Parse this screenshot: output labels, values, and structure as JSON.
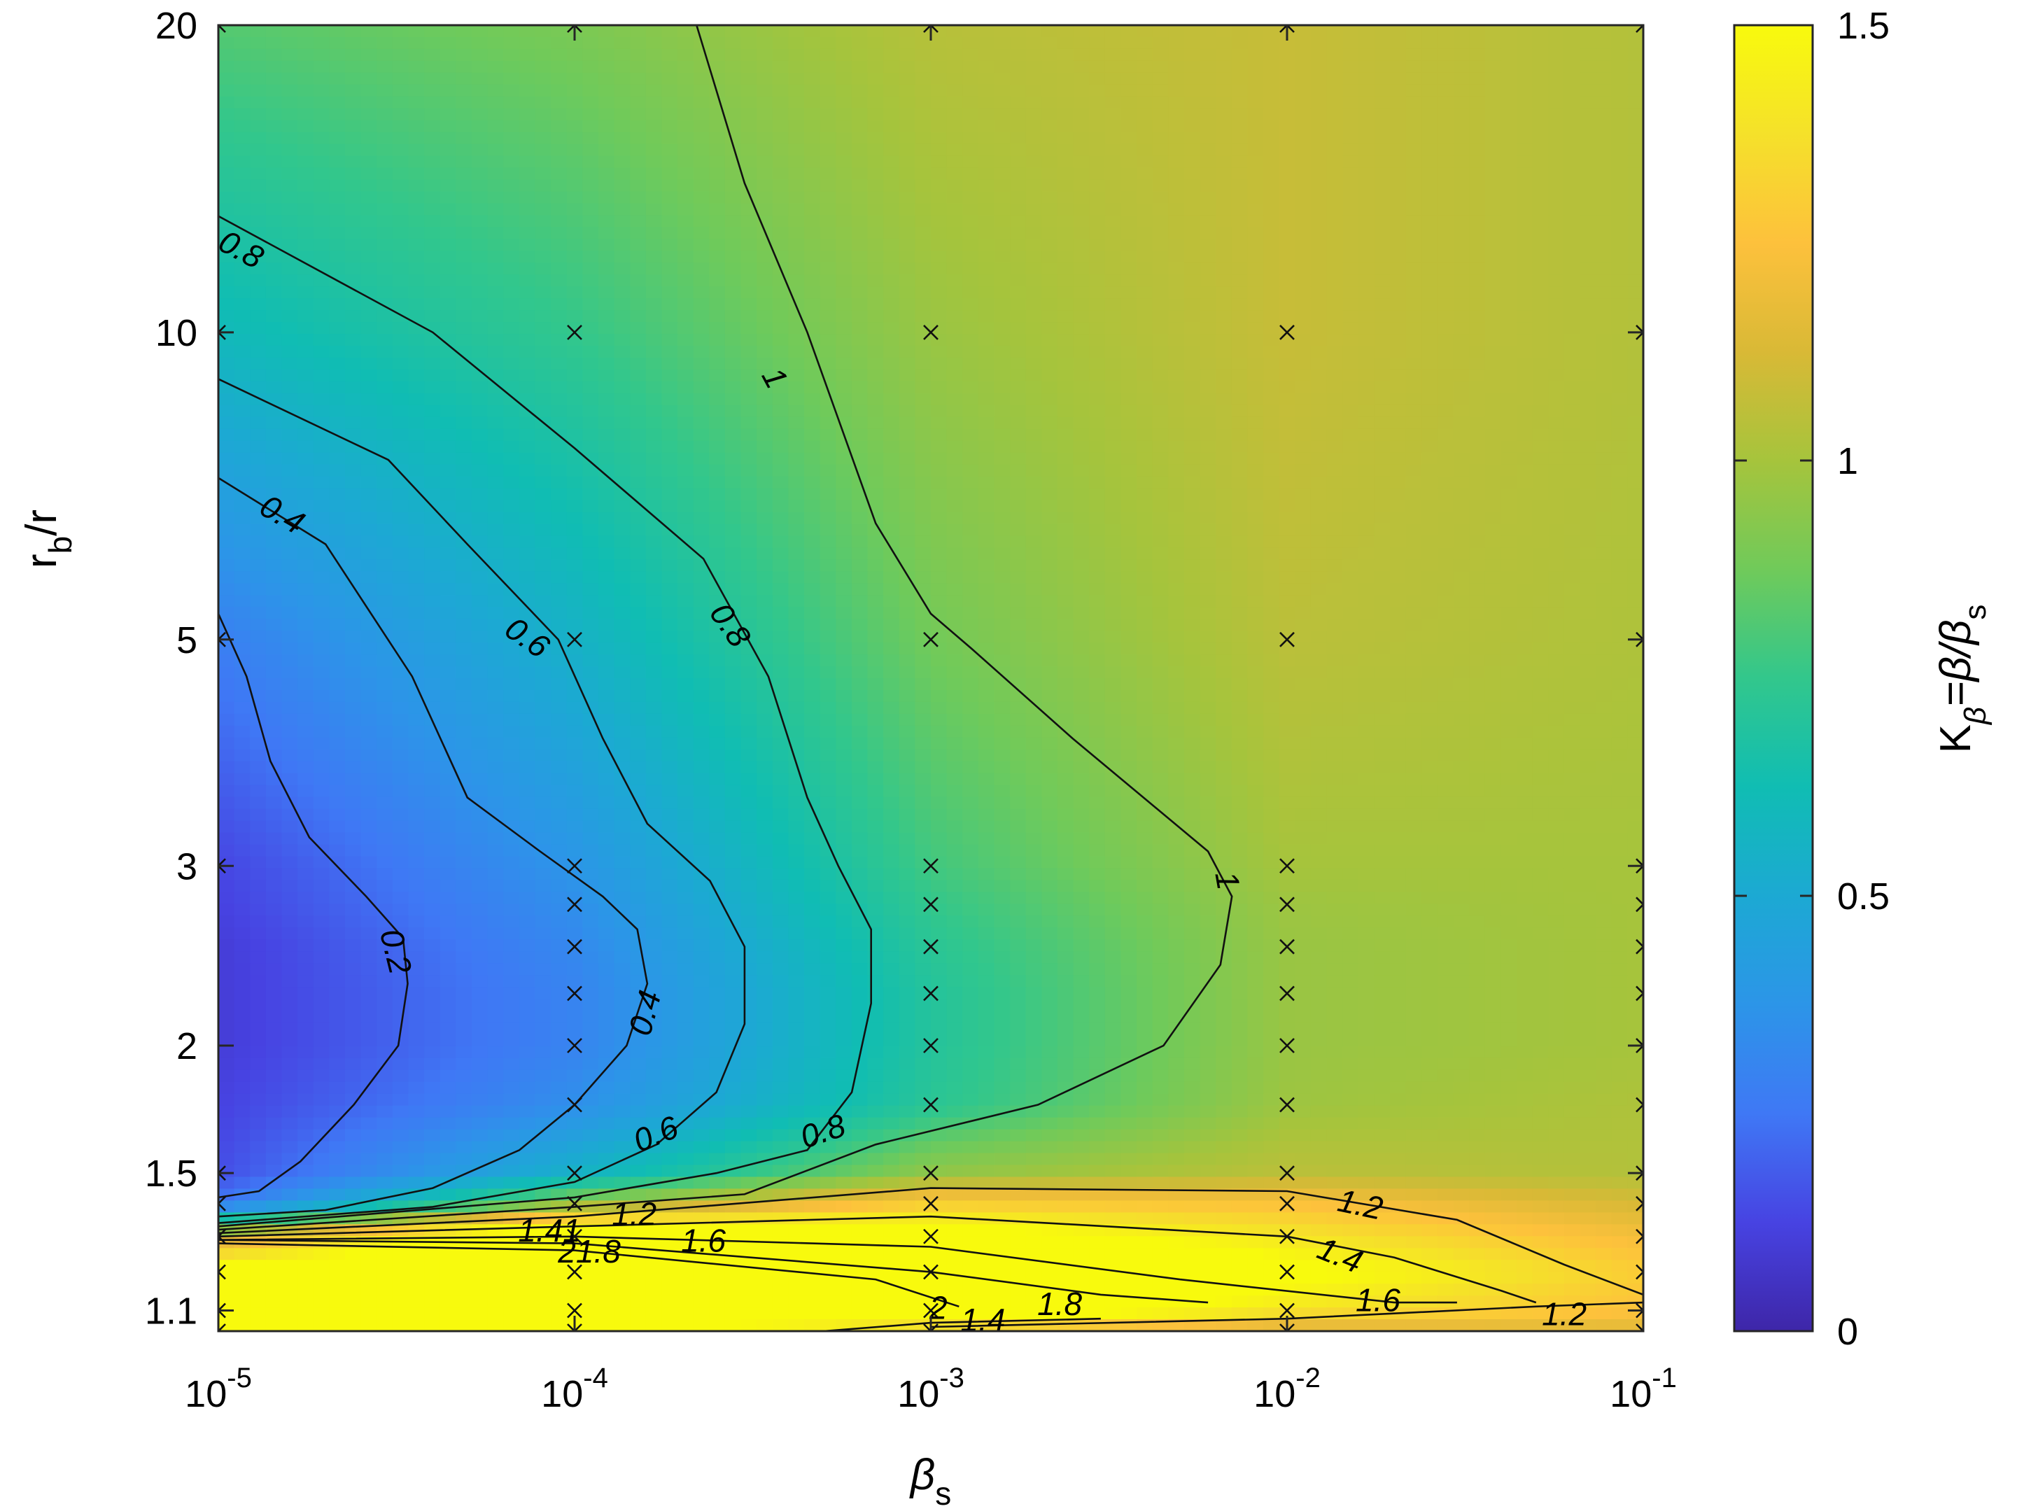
{
  "chart_data": {
    "type": "heatmap",
    "title": "",
    "xlabel": "β",
    "xlabel_sub": "s",
    "ylabel": "r",
    "ylabel_sub": "b",
    "ylabel_suffix": "/r",
    "x_scale": "log",
    "y_scale": "log",
    "xlim": [
      1e-05,
      0.1
    ],
    "ylim": [
      1.05,
      20
    ],
    "x_ticks": [
      {
        "value": 1e-05,
        "base": "10",
        "exp": "-5"
      },
      {
        "value": 0.0001,
        "base": "10",
        "exp": "-4"
      },
      {
        "value": 0.001,
        "base": "10",
        "exp": "-3"
      },
      {
        "value": 0.01,
        "base": "10",
        "exp": "-2"
      },
      {
        "value": 0.1,
        "base": "10",
        "exp": "-1"
      }
    ],
    "y_ticks": [
      {
        "value": 1.1,
        "label": "1.1"
      },
      {
        "value": 1.5,
        "label": "1.5"
      },
      {
        "value": 2,
        "label": "2"
      },
      {
        "value": 3,
        "label": "3"
      },
      {
        "value": 5,
        "label": "5"
      },
      {
        "value": 10,
        "label": "10"
      },
      {
        "value": 20,
        "label": "20"
      }
    ],
    "colorbar": {
      "range": [
        0,
        1.5
      ],
      "ticks": [
        {
          "value": 0,
          "label": "0"
        },
        {
          "value": 0.5,
          "label": "0.5"
        },
        {
          "value": 1,
          "label": "1"
        },
        {
          "value": 1.5,
          "label": "1.5"
        }
      ],
      "label": {
        "k": "K",
        "k_sub": "β",
        "rest": "=β/β",
        "rest_sub": "s"
      },
      "colormap": "parula",
      "colors": [
        "#3e26a8",
        "#4743e2",
        "#3f78f5",
        "#2c95e8",
        "#1ca9d3",
        "#10bdb3",
        "#32c78c",
        "#70ca5a",
        "#a6c43c",
        "#d9b936",
        "#fdc13c",
        "#f5e12a",
        "#f8fa0d"
      ]
    },
    "x_samples": [
      1e-05,
      0.0001,
      0.001,
      0.01,
      0.1
    ],
    "y_samples": [
      1.05,
      1.1,
      1.2,
      1.3,
      1.4,
      1.5,
      1.75,
      2,
      2.25,
      2.5,
      2.75,
      3,
      5,
      10,
      20
    ],
    "z": [
      [
        1.6,
        1.6,
        1.25,
        1.1,
        1.15
      ],
      [
        1.6,
        1.6,
        1.7,
        1.4,
        1.25
      ],
      [
        1.6,
        1.7,
        1.9,
        1.55,
        1.3
      ],
      [
        1.1,
        1.8,
        1.6,
        1.4,
        1.22
      ],
      [
        0.25,
        0.95,
        1.3,
        1.25,
        1.12
      ],
      [
        0.15,
        0.55,
        0.95,
        1.05,
        1.03
      ],
      [
        0.12,
        0.35,
        0.72,
        0.98,
        1.02
      ],
      [
        0.1,
        0.3,
        0.7,
        0.97,
        1.0
      ],
      [
        0.1,
        0.3,
        0.7,
        0.97,
        1.0
      ],
      [
        0.1,
        0.32,
        0.72,
        0.97,
        1.0
      ],
      [
        0.12,
        0.35,
        0.75,
        0.98,
        1.0
      ],
      [
        0.13,
        0.38,
        0.78,
        1.0,
        1.0
      ],
      [
        0.28,
        0.55,
        0.88,
        1.05,
        1.02
      ],
      [
        0.6,
        0.75,
        0.97,
        1.08,
        1.03
      ],
      [
        0.82,
        0.9,
        1.04,
        1.08,
        1.03
      ]
    ],
    "contours": [
      {
        "level": "0.2",
        "points": [
          [
            1e-05,
            1.42
          ],
          [
            1.3e-05,
            1.44
          ],
          [
            1.7e-05,
            1.54
          ],
          [
            2.4e-05,
            1.75
          ],
          [
            3.2e-05,
            2.0
          ],
          [
            3.4e-05,
            2.3
          ],
          [
            3.3e-05,
            2.55
          ],
          [
            2.6e-05,
            2.8
          ],
          [
            1.8e-05,
            3.2
          ],
          [
            1.4e-05,
            3.8
          ],
          [
            1.2e-05,
            4.6
          ],
          [
            1e-05,
            5.3
          ]
        ]
      },
      {
        "level": "0.4",
        "points": [
          [
            1e-05,
            1.36
          ],
          [
            2e-05,
            1.38
          ],
          [
            4e-05,
            1.45
          ],
          [
            7e-05,
            1.58
          ],
          [
            0.0001,
            1.75
          ],
          [
            0.00014,
            2.0
          ],
          [
            0.00016,
            2.3
          ],
          [
            0.00015,
            2.6
          ],
          [
            0.00012,
            2.8
          ],
          [
            8e-05,
            3.1
          ],
          [
            5e-05,
            3.5
          ],
          [
            3.5e-05,
            4.6
          ],
          [
            2e-05,
            6.2
          ],
          [
            1e-05,
            7.2
          ]
        ]
      },
      {
        "level": "0.6",
        "points": [
          [
            1e-05,
            1.34
          ],
          [
            4e-05,
            1.39
          ],
          [
            0.0001,
            1.47
          ],
          [
            0.00017,
            1.6
          ],
          [
            0.00025,
            1.8
          ],
          [
            0.0003,
            2.1
          ],
          [
            0.0003,
            2.5
          ],
          [
            0.00024,
            2.9
          ],
          [
            0.00016,
            3.3
          ],
          [
            0.00012,
            4.0
          ],
          [
            9e-05,
            5.0
          ],
          [
            5e-05,
            6.2
          ],
          [
            3e-05,
            7.5
          ],
          [
            1e-05,
            9.0
          ]
        ]
      },
      {
        "level": "0.8",
        "points": [
          [
            1e-05,
            1.33
          ],
          [
            0.0001,
            1.42
          ],
          [
            0.00025,
            1.5
          ],
          [
            0.00045,
            1.58
          ],
          [
            0.0006,
            1.8
          ],
          [
            0.00068,
            2.2
          ],
          [
            0.00068,
            2.6
          ],
          [
            0.00055,
            3.0
          ],
          [
            0.00045,
            3.5
          ],
          [
            0.00035,
            4.6
          ],
          [
            0.00023,
            6.0
          ],
          [
            0.0001,
            7.7
          ],
          [
            4e-05,
            10.0
          ],
          [
            1e-05,
            13.0
          ]
        ]
      },
      {
        "level": "1",
        "points": [
          [
            1e-05,
            1.32
          ],
          [
            0.0001,
            1.39
          ],
          [
            0.0003,
            1.43
          ],
          [
            0.0007,
            1.6
          ],
          [
            0.002,
            1.75
          ],
          [
            0.0045,
            2.0
          ],
          [
            0.0065,
            2.4
          ],
          [
            0.007,
            2.8
          ],
          [
            0.006,
            3.1
          ],
          [
            0.0025,
            4.0
          ],
          [
            0.0013,
            4.9
          ],
          [
            0.001,
            5.3
          ],
          [
            0.0007,
            6.5
          ],
          [
            0.00045,
            10.0
          ],
          [
            0.0003,
            14.0
          ],
          [
            0.00022,
            20.0
          ]
        ]
      },
      {
        "level": "1.2",
        "points": [
          [
            1e-05,
            1.31
          ],
          [
            0.0001,
            1.36
          ],
          [
            0.001,
            1.45
          ],
          [
            0.01,
            1.44
          ],
          [
            0.03,
            1.35
          ],
          [
            0.06,
            1.22
          ],
          [
            0.1,
            1.14
          ]
        ]
      },
      {
        "level": "1.2",
        "points": [
          [
            0.001,
            1.06
          ],
          [
            0.01,
            1.08
          ],
          [
            0.05,
            1.11
          ],
          [
            0.1,
            1.12
          ]
        ]
      },
      {
        "level": "1.4",
        "points": [
          [
            1e-05,
            1.3
          ],
          [
            0.0001,
            1.33
          ],
          [
            0.001,
            1.36
          ],
          [
            0.01,
            1.3
          ],
          [
            0.02,
            1.24
          ],
          [
            0.04,
            1.15
          ],
          [
            0.05,
            1.12
          ]
        ]
      },
      {
        "level": "1.4",
        "points": [
          [
            0.0005,
            1.05
          ],
          [
            0.001,
            1.07
          ],
          [
            0.003,
            1.08
          ]
        ]
      },
      {
        "level": "1.6",
        "points": [
          [
            1e-05,
            1.29
          ],
          [
            0.0001,
            1.3
          ],
          [
            0.001,
            1.27
          ],
          [
            0.005,
            1.18
          ],
          [
            0.02,
            1.12
          ],
          [
            0.03,
            1.12
          ]
        ]
      },
      {
        "level": "1.8",
        "points": [
          [
            1e-05,
            1.29
          ],
          [
            0.0001,
            1.28
          ],
          [
            0.001,
            1.2
          ],
          [
            0.003,
            1.14
          ],
          [
            0.006,
            1.12
          ]
        ]
      },
      {
        "level": "2",
        "points": [
          [
            1e-05,
            1.28
          ],
          [
            0.0001,
            1.26
          ],
          [
            0.0007,
            1.18
          ],
          [
            0.0012,
            1.11
          ]
        ]
      }
    ],
    "contour_labels": [
      {
        "text": "0.8",
        "x": 1.15e-05,
        "y": 12.0,
        "angle": 28
      },
      {
        "text": "0.4",
        "x": 1.5e-05,
        "y": 6.6,
        "angle": 30
      },
      {
        "text": "0.2",
        "x": 3.1e-05,
        "y": 2.47,
        "angle": 76
      },
      {
        "text": "0.6",
        "x": 7.3e-05,
        "y": 5.0,
        "angle": 35
      },
      {
        "text": "0.8",
        "x": 0.00027,
        "y": 5.15,
        "angle": 55
      },
      {
        "text": "1",
        "x": 0.00036,
        "y": 9.0,
        "angle": 62
      },
      {
        "text": "1",
        "x": 0.0067,
        "y": 2.9,
        "angle": 80
      },
      {
        "text": "0.4",
        "x": 0.00016,
        "y": 2.15,
        "angle": -75
      },
      {
        "text": "0.6",
        "x": 0.00017,
        "y": 1.63,
        "angle": -22
      },
      {
        "text": "0.8",
        "x": 0.0005,
        "y": 1.64,
        "angle": -18
      },
      {
        "text": "1.2",
        "x": 0.016,
        "y": 1.39,
        "angle": 12
      },
      {
        "text": "1.4",
        "x": 0.014,
        "y": 1.24,
        "angle": 22
      },
      {
        "text": "1.6",
        "x": 0.018,
        "y": 1.12,
        "angle": 0
      },
      {
        "text": "1.2",
        "x": 0.06,
        "y": 1.085,
        "angle": 0
      },
      {
        "text": "1.8",
        "x": 0.0023,
        "y": 1.11,
        "angle": 0
      },
      {
        "text": "1.4",
        "x": 0.0014,
        "y": 1.07,
        "angle": 0
      },
      {
        "text": "2",
        "x": 0.00105,
        "y": 1.1,
        "angle": 0
      },
      {
        "text": "1.41",
        "x": 8.5e-05,
        "y": 1.31,
        "angle": 0
      },
      {
        "text": "1.2",
        "x": 0.000147,
        "y": 1.36,
        "angle": 0
      },
      {
        "text": "1.6",
        "x": 0.00023,
        "y": 1.28,
        "angle": 0
      },
      {
        "text": "21.8",
        "x": 0.00011,
        "y": 1.25,
        "angle": 0
      }
    ],
    "markers": {
      "symbol": "x",
      "x": [
        1e-05,
        0.0001,
        0.001,
        0.01,
        0.1
      ],
      "y": [
        1.05,
        1.1,
        1.2,
        1.3,
        1.4,
        1.5,
        1.75,
        2,
        2.25,
        2.5,
        2.75,
        3,
        5,
        10,
        20
      ]
    }
  }
}
